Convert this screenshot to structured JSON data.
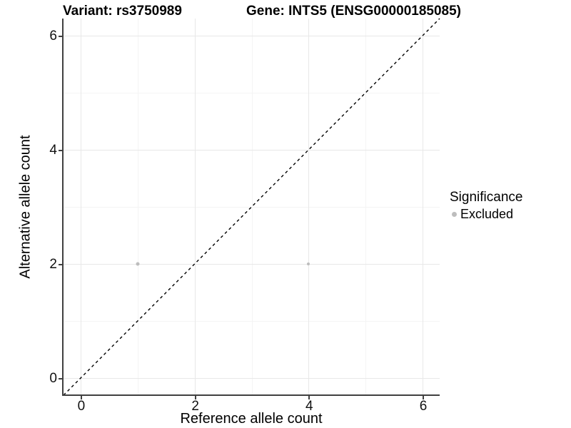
{
  "titles": {
    "variant": "Variant: rs3750989",
    "gene": "Gene: INTS5 (ENSG00000185085)"
  },
  "axes": {
    "x": {
      "label": "Reference allele count"
    },
    "y": {
      "label": "Alternative allele count"
    }
  },
  "legend": {
    "title": "Significance",
    "items": [
      {
        "label": "Excluded",
        "color": "#bdbdbd"
      }
    ]
  },
  "colors": {
    "background": "#ffffff",
    "grid_major": "#e8e8e8",
    "grid_minor": "#f4f4f4",
    "axis_line": "#404040",
    "point": "#bdbdbd",
    "reference_line": "#000000",
    "text": "#000000"
  },
  "chart_data": {
    "type": "scatter",
    "title": "Variant: rs3750989   Gene: INTS5 (ENSG00000185085)",
    "xlabel": "Reference allele count",
    "ylabel": "Alternative allele count",
    "xlim": [
      -0.3,
      6.3
    ],
    "ylim": [
      -0.3,
      6.3
    ],
    "x_ticks": [
      0,
      2,
      4,
      6
    ],
    "y_ticks": [
      0,
      2,
      4,
      6
    ],
    "minor_x": [
      1,
      3,
      5
    ],
    "minor_y": [
      1,
      3,
      5
    ],
    "grid": true,
    "legend_position": "right",
    "series": [
      {
        "name": "Excluded",
        "color": "#bdbdbd",
        "points": [
          {
            "x": 1,
            "y": 2,
            "size": 5
          },
          {
            "x": 4,
            "y": 2,
            "size": 4
          }
        ]
      }
    ],
    "reference_line": {
      "type": "identity y=x",
      "style": "dashed",
      "color": "#000000",
      "from": [
        -0.3,
        -0.3
      ],
      "to": [
        6.3,
        6.3
      ]
    }
  }
}
